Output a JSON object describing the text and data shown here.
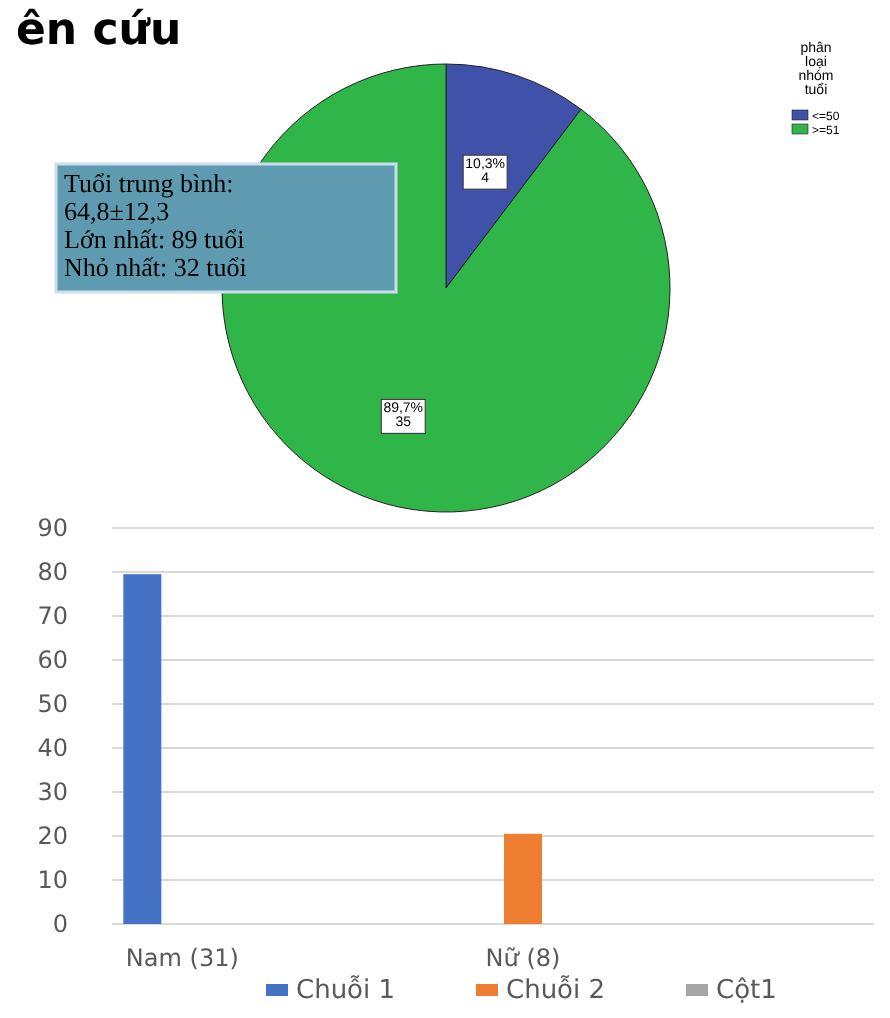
{
  "chart_data": [
    {
      "type": "pie",
      "title": "ên cứu",
      "legend_title": "phân loại nhóm tuổi",
      "legend": "top right",
      "categories": [
        "<=50",
        ">=51"
      ],
      "values": [
        10.3,
        89.7
      ],
      "colors": [
        "#3f51a8",
        "#2fb548"
      ],
      "value_labels": [
        "10,3%\n4",
        "89,7%\n35"
      ],
      "annotations": [
        "Tuổi trung bình:\n64,8±12,3\nLớn nhất: 89 tuổi\nNhỏ nhất: 32 tuổi"
      ]
    },
    {
      "type": "bar",
      "categories": [
        "Nam (31)",
        "Nữ (8)",
        null
      ],
      "ylim": [
        0,
        90
      ],
      "yticks": [
        0,
        10,
        20,
        30,
        40,
        50,
        60,
        70,
        80,
        90
      ],
      "grid": "y",
      "legend": "bottom",
      "series": [
        {
          "name": "Chuỗi 1",
          "color": "#4472c4",
          "values": [
            79.5,
            null,
            null
          ]
        },
        {
          "name": "Chuỗi 2",
          "color": "#ed7d31",
          "values": [
            null,
            20.5,
            null
          ]
        },
        {
          "name": "Cột1",
          "color": "#a5a5a5",
          "values": [
            null,
            null,
            null
          ]
        }
      ]
    }
  ]
}
